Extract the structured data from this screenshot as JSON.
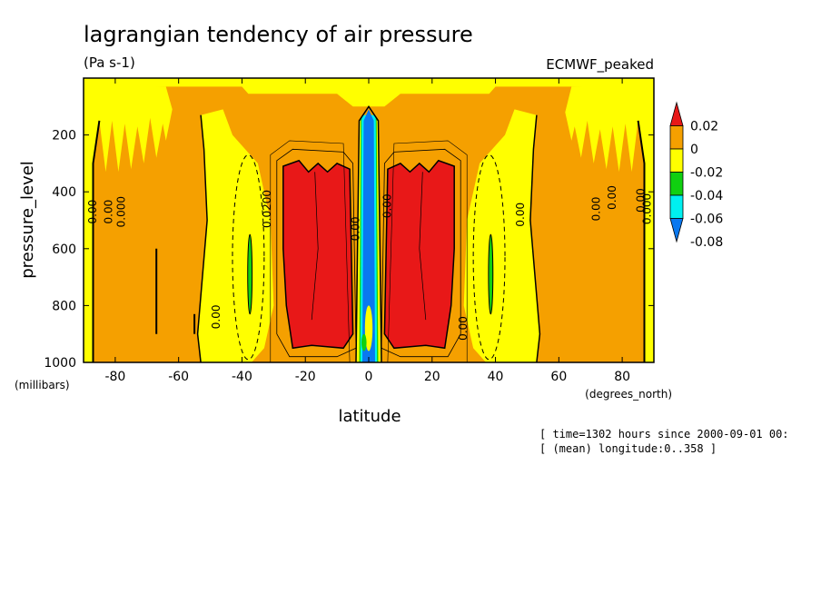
{
  "chart_data": {
    "type": "heatmap",
    "title": "lagrangian tendency of air pressure",
    "units": "(Pa s-1)",
    "dataset": "ECMWF_peaked",
    "xlabel": "latitude",
    "x_units": "(degrees_north)",
    "ylabel": "pressure_level",
    "y_units": "(millibars)",
    "xlim": [
      -90,
      90
    ],
    "ylim": [
      1000,
      0
    ],
    "x_ticks": [
      "-80",
      "-60",
      "-40",
      "-20",
      "0",
      "20",
      "40",
      "60",
      "80"
    ],
    "x_tick_values": [
      -80,
      -60,
      -40,
      -20,
      0,
      20,
      40,
      60,
      80
    ],
    "y_ticks": [
      "200",
      "400",
      "600",
      "800",
      "1000"
    ],
    "y_tick_values": [
      200,
      400,
      600,
      800,
      1000
    ],
    "colorbar": {
      "labels": [
        "0.02",
        "0",
        "-0.02",
        "-0.04",
        "-0.06",
        "-0.08"
      ],
      "levels": [
        0.02,
        0,
        -0.02,
        -0.04,
        -0.06,
        -0.08
      ],
      "colors": [
        "#e81818",
        "#f5a000",
        "#ffff00",
        "#10d010",
        "#00f0f0",
        "#0a78f0"
      ]
    },
    "regions": [
      {
        "level": "0 to 0.02",
        "color": "#f5a000",
        "desc": "background"
      },
      {
        "level": "-0.02 to 0",
        "color": "#ffff00",
        "lat": [
          -50,
          -30
        ],
        "p": [
          120,
          1000
        ]
      },
      {
        "level": "-0.02 to 0",
        "color": "#ffff00",
        "lat": [
          30,
          50
        ],
        "p": [
          120,
          1000
        ]
      },
      {
        "level": ">0.02",
        "color": "#e81818",
        "lat": [
          -27,
          -5
        ],
        "p": [
          300,
          950
        ]
      },
      {
        "level": ">0.02",
        "color": "#e81818",
        "lat": [
          5,
          27
        ],
        "p": [
          300,
          950
        ]
      },
      {
        "level": "<-0.08",
        "color": "#0a78f0",
        "lat": [
          -2,
          2
        ],
        "p": [
          150,
          1000
        ]
      },
      {
        "level": "-0.04 to -0.02",
        "color": "#10d010",
        "lat": [
          -38,
          -37
        ],
        "p": [
          560,
          830
        ]
      },
      {
        "level": "-0.04 to -0.02",
        "color": "#10d010",
        "lat": [
          38,
          39
        ],
        "p": [
          560,
          830
        ]
      }
    ],
    "contour_labels": [
      "0.00",
      "0.00",
      "0.000",
      "0.00",
      "0.0200",
      "0.00",
      "0.00",
      "0.00",
      "0.00",
      "0.00",
      "0.00",
      "0.00",
      "0.000"
    ],
    "contour_label_lat": [
      -86,
      -81,
      -77,
      -47,
      -31,
      -3,
      7,
      49,
      31,
      73,
      78,
      87,
      89
    ],
    "contour_label_p": [
      470,
      470,
      470,
      840,
      460,
      530,
      450,
      480,
      880,
      460,
      420,
      430,
      460
    ],
    "grid": false
  },
  "footer": {
    "line1": "[ time=1302 hours since 2000-09-01 00:",
    "line2": "[ (mean) longitude:0..358 ]"
  }
}
